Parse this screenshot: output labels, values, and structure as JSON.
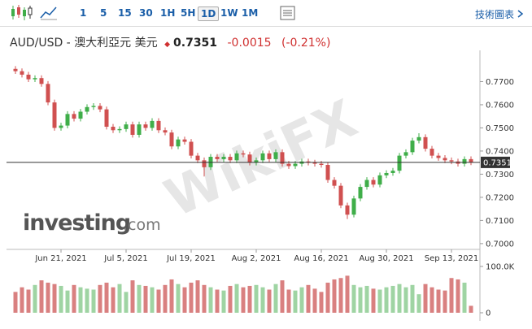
{
  "toolbar": {
    "intervals": [
      "1",
      "5",
      "15",
      "30",
      "1H",
      "5H",
      "1D",
      "1W",
      "1M"
    ],
    "menu": "技術圖表"
  },
  "header": {
    "symbol": "AUD/USD - 澳大利亞元 美元",
    "price": "0.7351",
    "change": "-0.0015",
    "change_percent": "(-0.21%)"
  },
  "watermark": {
    "logo_main": "investing",
    "logo_suffix": ".com",
    "overlay": "WikiFX"
  },
  "chart_data": {
    "type": "candlestick",
    "categories": [
      null,
      null,
      null,
      null,
      null,
      null,
      null,
      "Jun 21, 2021",
      null,
      null,
      null,
      null,
      null,
      null,
      null,
      null,
      null,
      "Jul 5, 2021",
      null,
      null,
      null,
      null,
      null,
      null,
      null,
      null,
      null,
      "Jul 19, 2021",
      null,
      null,
      null,
      null,
      null,
      null,
      null,
      null,
      null,
      "Aug 2, 2021",
      null,
      null,
      null,
      null,
      null,
      null,
      null,
      null,
      null,
      "Aug 16, 2021",
      null,
      null,
      null,
      null,
      null,
      null,
      null,
      null,
      null,
      "Aug 30, 2021",
      null,
      null,
      null,
      null,
      null,
      null,
      null,
      null,
      null,
      "Sep 13, 2021",
      null,
      null,
      null
    ],
    "open": [
      0.7755,
      0.7745,
      0.773,
      0.771,
      0.7715,
      0.769,
      0.761,
      0.75,
      0.751,
      0.756,
      0.754,
      0.757,
      0.759,
      0.7595,
      0.758,
      0.7505,
      0.749,
      0.7495,
      0.7515,
      0.747,
      0.7515,
      0.75,
      0.753,
      0.749,
      0.748,
      0.742,
      0.745,
      0.744,
      0.738,
      0.736,
      0.733,
      0.7375,
      0.7365,
      0.7375,
      0.736,
      0.739,
      0.7385,
      0.735,
      0.736,
      0.739,
      0.7365,
      0.7395,
      0.7345,
      0.7335,
      0.7345,
      0.7355,
      0.735,
      0.7345,
      0.734,
      0.7275,
      0.725,
      0.7165,
      0.7125,
      0.7195,
      0.7245,
      0.7275,
      0.7255,
      0.7295,
      0.7305,
      0.7315,
      0.738,
      0.7395,
      0.7445,
      0.746,
      0.741,
      0.738,
      0.737,
      0.736,
      0.7355,
      0.7345,
      0.7365
    ],
    "high": [
      0.7767,
      0.7757,
      0.7742,
      0.7727,
      0.7727,
      0.7702,
      0.7622,
      0.7522,
      0.7572,
      0.7572,
      0.7582,
      0.7602,
      0.7607,
      0.7607,
      0.7592,
      0.7517,
      0.7507,
      0.7527,
      0.7527,
      0.7527,
      0.7527,
      0.7542,
      0.7542,
      0.7502,
      0.7492,
      0.7462,
      0.7462,
      0.7452,
      0.7392,
      0.7372,
      0.7387,
      0.7387,
      0.7387,
      0.7387,
      0.7402,
      0.7402,
      0.7397,
      0.7372,
      0.7402,
      0.7402,
      0.7407,
      0.7407,
      0.7357,
      0.7357,
      0.7367,
      0.7367,
      0.7362,
      0.7357,
      0.7352,
      0.7287,
      0.7262,
      0.7177,
      0.7207,
      0.7257,
      0.7287,
      0.7287,
      0.7307,
      0.7317,
      0.7327,
      0.7392,
      0.7407,
      0.7457,
      0.7477,
      0.7472,
      0.7422,
      0.7392,
      0.7382,
      0.7372,
      0.7367,
      0.7377,
      0.7377
    ],
    "low": [
      0.7733,
      0.7718,
      0.7698,
      0.7698,
      0.7678,
      0.7598,
      0.7488,
      0.7488,
      0.7498,
      0.7528,
      0.7528,
      0.7558,
      0.7578,
      0.7568,
      0.7493,
      0.7478,
      0.7478,
      0.7483,
      0.7458,
      0.7458,
      0.7488,
      0.7488,
      0.7478,
      0.7468,
      0.7408,
      0.7408,
      0.7428,
      0.7368,
      0.7348,
      0.729,
      0.7318,
      0.7353,
      0.7353,
      0.7348,
      0.7348,
      0.7373,
      0.7338,
      0.7338,
      0.7348,
      0.7353,
      0.7353,
      0.7333,
      0.7323,
      0.7323,
      0.7333,
      0.7338,
      0.7333,
      0.7328,
      0.7263,
      0.7238,
      0.7153,
      0.7106,
      0.7113,
      0.7183,
      0.7233,
      0.7243,
      0.7243,
      0.7283,
      0.7293,
      0.7303,
      0.7368,
      0.7383,
      0.7433,
      0.7398,
      0.7368,
      0.7358,
      0.7348,
      0.7343,
      0.7333,
      0.7333,
      0.7339
    ],
    "close": [
      0.7745,
      0.773,
      0.771,
      0.7715,
      0.769,
      0.761,
      0.75,
      0.751,
      0.756,
      0.754,
      0.757,
      0.759,
      0.7595,
      0.758,
      0.7505,
      0.749,
      0.7495,
      0.7515,
      0.747,
      0.7515,
      0.75,
      0.753,
      0.749,
      0.748,
      0.742,
      0.745,
      0.744,
      0.738,
      0.736,
      0.733,
      0.7375,
      0.7365,
      0.7375,
      0.736,
      0.739,
      0.7385,
      0.735,
      0.736,
      0.739,
      0.7365,
      0.7395,
      0.7345,
      0.7335,
      0.7345,
      0.7355,
      0.735,
      0.7345,
      0.734,
      0.7275,
      0.725,
      0.7165,
      0.7125,
      0.7195,
      0.7245,
      0.7275,
      0.7255,
      0.7295,
      0.7305,
      0.7315,
      0.738,
      0.7395,
      0.7445,
      0.746,
      0.741,
      0.738,
      0.737,
      0.736,
      0.7355,
      0.7345,
      0.7365,
      0.7351
    ],
    "volume": [
      45000,
      55000,
      50000,
      60000,
      70000,
      65000,
      62000,
      58000,
      48000,
      60000,
      55000,
      52000,
      50000,
      60000,
      65000,
      55000,
      62000,
      45000,
      70000,
      60000,
      58000,
      55000,
      50000,
      60000,
      72000,
      62000,
      55000,
      65000,
      70000,
      60000,
      55000,
      50000,
      48000,
      58000,
      62000,
      55000,
      58000,
      60000,
      55000,
      50000,
      62000,
      70000,
      50000,
      48000,
      55000,
      60000,
      52000,
      45000,
      65000,
      72000,
      75000,
      80000,
      60000,
      55000,
      58000,
      52000,
      50000,
      55000,
      58000,
      62000,
      55000,
      60000,
      40000,
      62000,
      55000,
      50000,
      48000,
      75000,
      72000,
      65000,
      15000
    ],
    "ylim": [
      0.6975,
      0.7835
    ],
    "yticks": [
      {
        "value": 0.7,
        "label": "0.7000"
      },
      {
        "value": 0.71,
        "label": "0.7100"
      },
      {
        "value": 0.72,
        "label": "0.7200"
      },
      {
        "value": 0.73,
        "label": "0.7300"
      },
      {
        "value": 0.74,
        "label": "0.7400"
      },
      {
        "value": 0.75,
        "label": "0.7500"
      },
      {
        "value": 0.76,
        "label": "0.7600"
      },
      {
        "value": 0.77,
        "label": "0.7700"
      }
    ],
    "volume_ylim": [
      0,
      100000
    ],
    "volume_ticks": [
      {
        "value": 100000,
        "label": "100.0K"
      },
      0
    ],
    "up_color": "#3fae49",
    "down_color": "#d05050",
    "volume_up_color": "#9fd4a3",
    "volume_down_color": "#d98080",
    "last_price_color": "#333333"
  }
}
